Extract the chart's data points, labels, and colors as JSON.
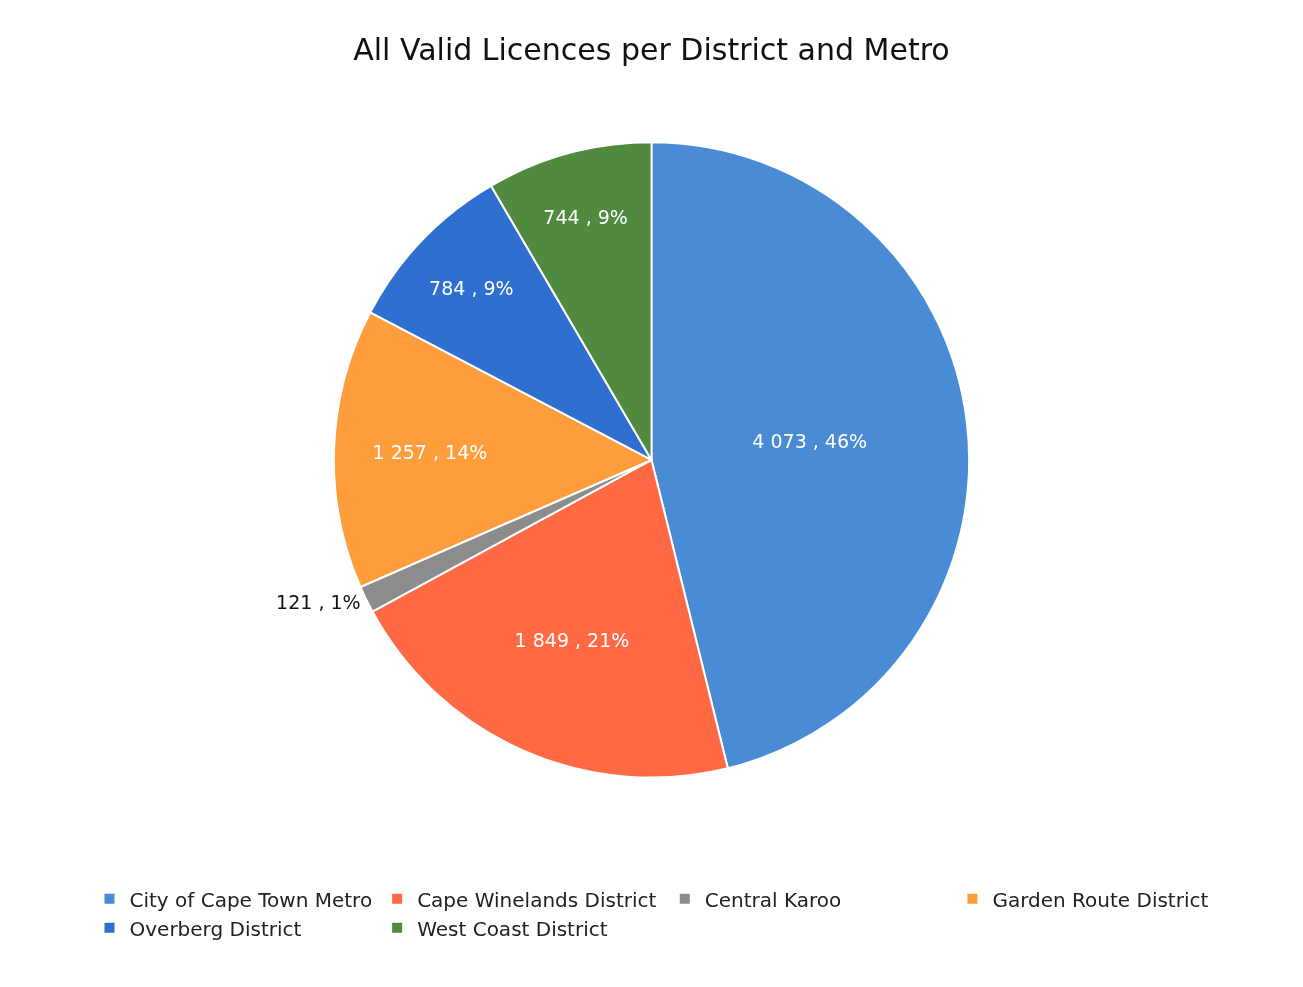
{
  "chart_data": {
    "type": "pie",
    "title": "All Valid Licences per District and Metro",
    "categories": [
      "City of Cape Town Metro",
      "Cape Winelands District",
      "Central Karoo",
      "Garden Route District",
      "Overberg District",
      "West Coast District"
    ],
    "values": [
      4073,
      1849,
      121,
      1257,
      784,
      744
    ],
    "colors": [
      "#4a8bd6",
      "#ff6a45",
      "#8c8c8c",
      "#ff9d3d",
      "#2f6fd0",
      "#4f8a3f"
    ],
    "value_labels": [
      "4 073 , 46%",
      "1 849 , 21%",
      "121 , 1%",
      "1 257 , 14%",
      "784 , 9%",
      "744 , 9%"
    ],
    "legend": "bottom"
  }
}
